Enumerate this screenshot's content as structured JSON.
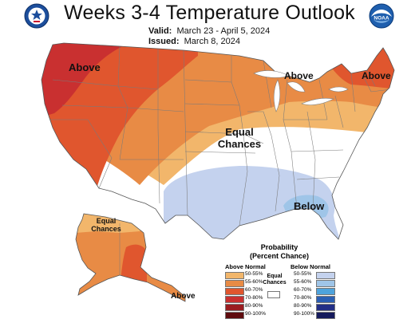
{
  "header": {
    "title": "Weeks 3-4 Temperature Outlook",
    "valid_label": "Valid:",
    "valid_value": "March 23 - April 5, 2024",
    "issued_label": "Issued:",
    "issued_value": "March 8, 2024",
    "left_logo_icon": "doc-seal-icon",
    "right_logo_icon": "noaa-logo-icon",
    "right_logo_text": "NOAA"
  },
  "map_labels": {
    "above_nw": "Above",
    "above_mw": "Above",
    "above_ne": "Above",
    "equal_line1": "Equal",
    "equal_line2": "Chances",
    "below_se": "Below",
    "ak_equal_line1": "Equal",
    "ak_equal_line2": "Chances",
    "ak_above": "Above"
  },
  "legend": {
    "title_line1": "Probability",
    "title_line2": "(Percent Chance)",
    "above_header": "Above Normal",
    "below_header": "Below Normal",
    "equal_line1": "Equal",
    "equal_line2": "Chances",
    "above_rows": [
      {
        "label": "50-55%",
        "color": "#f2b66b"
      },
      {
        "label": "55-60%",
        "color": "#e88b45"
      },
      {
        "label": "60-70%",
        "color": "#e0562e"
      },
      {
        "label": "70-80%",
        "color": "#c93030"
      },
      {
        "label": "80-90%",
        "color": "#9a1c20"
      },
      {
        "label": "90-100%",
        "color": "#5e0b0e"
      }
    ],
    "below_rows": [
      {
        "label": "50-55%",
        "color": "#c4d2ee"
      },
      {
        "label": "55-60%",
        "color": "#9fc5e8"
      },
      {
        "label": "60-70%",
        "color": "#4ea3dc"
      },
      {
        "label": "70-80%",
        "color": "#2b5fb3"
      },
      {
        "label": "80-90%",
        "color": "#222e86"
      },
      {
        "label": "90-100%",
        "color": "#151a5c"
      }
    ]
  }
}
